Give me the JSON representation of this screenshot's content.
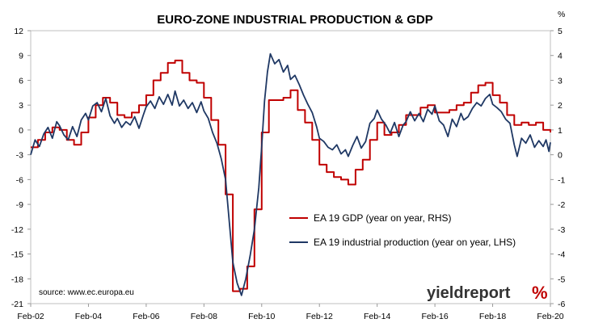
{
  "chart_data": {
    "type": "line",
    "title": "EURO-ZONE INDUSTRIAL PRODUCTION & GDP",
    "right_axis_unit": "%",
    "source": "source: www.ec.europa.eu",
    "brand": {
      "text": "yieldreport",
      "symbol": "%"
    },
    "x_labels": [
      "Feb-02",
      "Feb-04",
      "Feb-06",
      "Feb-08",
      "Feb-10",
      "Feb-12",
      "Feb-14",
      "Feb-16",
      "Feb-18",
      "Feb-20"
    ],
    "x_range": [
      2002.0,
      2020.0
    ],
    "left_axis": {
      "range": [
        -21,
        12
      ],
      "ticks": [
        12,
        9,
        6,
        3,
        0,
        -3,
        -6,
        -9,
        -12,
        -15,
        -18,
        -21
      ]
    },
    "right_axis": {
      "range": [
        -6,
        5
      ],
      "ticks": [
        5,
        4,
        3,
        2,
        1,
        0,
        -1,
        -2,
        -3,
        -4,
        -5,
        -6
      ]
    },
    "legend_position": "right-middle",
    "grid": false,
    "series": [
      {
        "name": "EA 19 GDP (year on year, RHS)",
        "axis": "right",
        "color": "#c00000",
        "step": true,
        "points": [
          [
            2002.0,
            0.3
          ],
          [
            2002.25,
            0.6
          ],
          [
            2002.5,
            0.9
          ],
          [
            2002.75,
            1.1
          ],
          [
            2003.0,
            1.0
          ],
          [
            2003.25,
            0.6
          ],
          [
            2003.5,
            0.4
          ],
          [
            2003.75,
            0.9
          ],
          [
            2004.0,
            1.5
          ],
          [
            2004.25,
            2.0
          ],
          [
            2004.5,
            2.3
          ],
          [
            2004.75,
            2.1
          ],
          [
            2005.0,
            1.6
          ],
          [
            2005.25,
            1.5
          ],
          [
            2005.5,
            1.7
          ],
          [
            2005.75,
            2.0
          ],
          [
            2006.0,
            2.4
          ],
          [
            2006.25,
            3.0
          ],
          [
            2006.5,
            3.3
          ],
          [
            2006.75,
            3.7
          ],
          [
            2007.0,
            3.8
          ],
          [
            2007.25,
            3.3
          ],
          [
            2007.5,
            3.0
          ],
          [
            2007.75,
            2.9
          ],
          [
            2008.0,
            2.3
          ],
          [
            2008.25,
            1.4
          ],
          [
            2008.5,
            0.4
          ],
          [
            2008.75,
            -1.6
          ],
          [
            2009.0,
            -5.5
          ],
          [
            2009.25,
            -5.4
          ],
          [
            2009.5,
            -4.5
          ],
          [
            2009.75,
            -2.2
          ],
          [
            2010.0,
            0.9
          ],
          [
            2010.25,
            2.2
          ],
          [
            2010.5,
            2.2
          ],
          [
            2010.75,
            2.3
          ],
          [
            2011.0,
            2.6
          ],
          [
            2011.25,
            1.8
          ],
          [
            2011.5,
            1.3
          ],
          [
            2011.75,
            0.6
          ],
          [
            2012.0,
            -0.4
          ],
          [
            2012.25,
            -0.7
          ],
          [
            2012.5,
            -0.9
          ],
          [
            2012.75,
            -1.0
          ],
          [
            2013.0,
            -1.2
          ],
          [
            2013.25,
            -0.6
          ],
          [
            2013.5,
            -0.2
          ],
          [
            2013.75,
            0.6
          ],
          [
            2014.0,
            1.3
          ],
          [
            2014.25,
            0.8
          ],
          [
            2014.5,
            0.9
          ],
          [
            2014.75,
            1.2
          ],
          [
            2015.0,
            1.6
          ],
          [
            2015.25,
            1.6
          ],
          [
            2015.5,
            1.9
          ],
          [
            2015.75,
            2.0
          ],
          [
            2016.0,
            1.7
          ],
          [
            2016.25,
            1.7
          ],
          [
            2016.5,
            1.8
          ],
          [
            2016.75,
            2.0
          ],
          [
            2017.0,
            2.1
          ],
          [
            2017.25,
            2.5
          ],
          [
            2017.5,
            2.8
          ],
          [
            2017.75,
            2.9
          ],
          [
            2018.0,
            2.4
          ],
          [
            2018.25,
            2.1
          ],
          [
            2018.5,
            1.6
          ],
          [
            2018.75,
            1.2
          ],
          [
            2019.0,
            1.3
          ],
          [
            2019.25,
            1.2
          ],
          [
            2019.5,
            1.3
          ],
          [
            2019.75,
            1.0
          ],
          [
            2020.0,
            0.9
          ]
        ]
      },
      {
        "name": "EA 19 industrial production (year on year, LHS)",
        "axis": "left",
        "color": "#1f3864",
        "step": false,
        "points": [
          [
            2002.0,
            -3.0
          ],
          [
            2002.15,
            -1.2
          ],
          [
            2002.3,
            -2.0
          ],
          [
            2002.45,
            -0.5
          ],
          [
            2002.6,
            0.3
          ],
          [
            2002.75,
            -1.0
          ],
          [
            2002.9,
            1.0
          ],
          [
            2003.0,
            0.5
          ],
          [
            2003.15,
            -0.6
          ],
          [
            2003.3,
            -1.2
          ],
          [
            2003.45,
            0.4
          ],
          [
            2003.6,
            -0.8
          ],
          [
            2003.75,
            1.2
          ],
          [
            2003.9,
            2.0
          ],
          [
            2004.0,
            1.2
          ],
          [
            2004.15,
            2.9
          ],
          [
            2004.3,
            3.3
          ],
          [
            2004.45,
            2.2
          ],
          [
            2004.6,
            3.8
          ],
          [
            2004.75,
            1.7
          ],
          [
            2004.9,
            0.8
          ],
          [
            2005.0,
            1.4
          ],
          [
            2005.15,
            0.3
          ],
          [
            2005.3,
            1.0
          ],
          [
            2005.45,
            0.6
          ],
          [
            2005.6,
            1.6
          ],
          [
            2005.75,
            0.2
          ],
          [
            2005.9,
            1.8
          ],
          [
            2006.0,
            2.8
          ],
          [
            2006.15,
            3.5
          ],
          [
            2006.3,
            2.6
          ],
          [
            2006.45,
            4.0
          ],
          [
            2006.6,
            3.1
          ],
          [
            2006.75,
            4.3
          ],
          [
            2006.9,
            3.0
          ],
          [
            2007.0,
            4.7
          ],
          [
            2007.15,
            2.9
          ],
          [
            2007.3,
            3.6
          ],
          [
            2007.45,
            2.6
          ],
          [
            2007.6,
            3.3
          ],
          [
            2007.75,
            2.1
          ],
          [
            2007.9,
            3.4
          ],
          [
            2008.0,
            2.3
          ],
          [
            2008.15,
            1.4
          ],
          [
            2008.3,
            -0.3
          ],
          [
            2008.45,
            -1.6
          ],
          [
            2008.6,
            -3.5
          ],
          [
            2008.75,
            -6.0
          ],
          [
            2008.9,
            -12.0
          ],
          [
            2009.0,
            -16.0
          ],
          [
            2009.15,
            -18.5
          ],
          [
            2009.3,
            -20.0
          ],
          [
            2009.45,
            -18.0
          ],
          [
            2009.6,
            -15.2
          ],
          [
            2009.75,
            -12.0
          ],
          [
            2009.9,
            -7.0
          ],
          [
            2010.0,
            -2.0
          ],
          [
            2010.1,
            3.5
          ],
          [
            2010.2,
            7.0
          ],
          [
            2010.3,
            9.2
          ],
          [
            2010.45,
            8.0
          ],
          [
            2010.6,
            8.5
          ],
          [
            2010.75,
            7.0
          ],
          [
            2010.9,
            7.8
          ],
          [
            2011.0,
            6.1
          ],
          [
            2011.15,
            6.6
          ],
          [
            2011.3,
            5.5
          ],
          [
            2011.45,
            4.2
          ],
          [
            2011.6,
            3.1
          ],
          [
            2011.75,
            2.1
          ],
          [
            2011.9,
            0.4
          ],
          [
            2012.0,
            -1.0
          ],
          [
            2012.15,
            -1.4
          ],
          [
            2012.3,
            -2.1
          ],
          [
            2012.45,
            -2.4
          ],
          [
            2012.6,
            -1.8
          ],
          [
            2012.75,
            -2.9
          ],
          [
            2012.9,
            -2.4
          ],
          [
            2013.0,
            -3.2
          ],
          [
            2013.15,
            -1.9
          ],
          [
            2013.3,
            -0.8
          ],
          [
            2013.45,
            -2.2
          ],
          [
            2013.6,
            -1.4
          ],
          [
            2013.75,
            0.8
          ],
          [
            2013.9,
            1.4
          ],
          [
            2014.0,
            2.4
          ],
          [
            2014.15,
            1.3
          ],
          [
            2014.3,
            0.6
          ],
          [
            2014.45,
            -0.4
          ],
          [
            2014.6,
            0.9
          ],
          [
            2014.75,
            -0.8
          ],
          [
            2014.9,
            0.6
          ],
          [
            2015.0,
            1.0
          ],
          [
            2015.15,
            2.2
          ],
          [
            2015.3,
            1.1
          ],
          [
            2015.45,
            2.0
          ],
          [
            2015.6,
            1.0
          ],
          [
            2015.75,
            2.5
          ],
          [
            2015.9,
            1.9
          ],
          [
            2016.0,
            2.9
          ],
          [
            2016.15,
            1.1
          ],
          [
            2016.3,
            0.6
          ],
          [
            2016.45,
            -0.8
          ],
          [
            2016.6,
            1.3
          ],
          [
            2016.75,
            0.4
          ],
          [
            2016.9,
            2.0
          ],
          [
            2017.0,
            1.2
          ],
          [
            2017.15,
            1.6
          ],
          [
            2017.3,
            2.6
          ],
          [
            2017.45,
            3.3
          ],
          [
            2017.6,
            2.9
          ],
          [
            2017.75,
            3.8
          ],
          [
            2017.9,
            4.3
          ],
          [
            2018.0,
            3.1
          ],
          [
            2018.15,
            2.7
          ],
          [
            2018.3,
            2.2
          ],
          [
            2018.45,
            1.3
          ],
          [
            2018.6,
            0.8
          ],
          [
            2018.75,
            -1.8
          ],
          [
            2018.85,
            -3.2
          ],
          [
            2019.0,
            -1.0
          ],
          [
            2019.15,
            -1.6
          ],
          [
            2019.3,
            -0.6
          ],
          [
            2019.45,
            -2.1
          ],
          [
            2019.6,
            -1.3
          ],
          [
            2019.75,
            -2.0
          ],
          [
            2019.85,
            -1.2
          ],
          [
            2019.95,
            -2.6
          ],
          [
            2020.0,
            -1.5
          ]
        ]
      }
    ]
  }
}
